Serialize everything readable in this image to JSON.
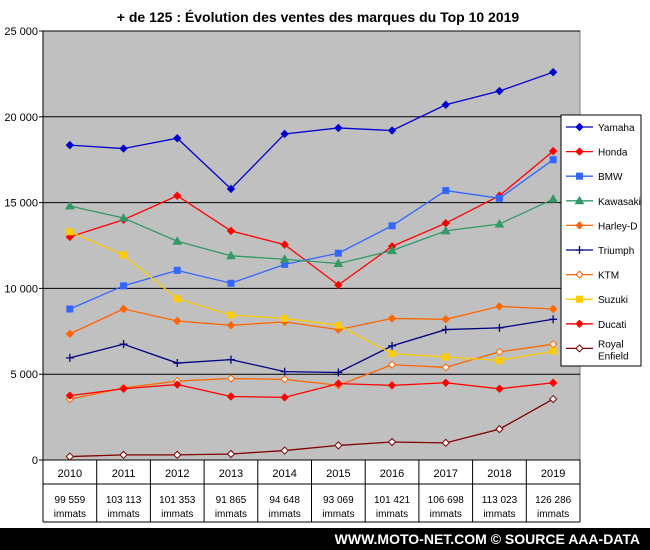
{
  "chart_data": {
    "type": "line",
    "title": "+ de 125 : Évolution des ventes des marques du Top 10 2019",
    "x": [
      "2010",
      "2011",
      "2012",
      "2013",
      "2014",
      "2015",
      "2016",
      "2017",
      "2018",
      "2019"
    ],
    "totals": [
      "99 559",
      "103 113",
      "101 353",
      "91 865",
      "94 648",
      "93 069",
      "101 421",
      "106 698",
      "113 023",
      "126 286"
    ],
    "totals_unit": "immats",
    "ylim": [
      0,
      25000
    ],
    "yticks": [
      0,
      5000,
      10000,
      15000,
      20000,
      25000
    ],
    "ytick_labels": [
      "0",
      "5 000",
      "10 000",
      "15 000",
      "20 000",
      "25 000"
    ],
    "grid": true,
    "legend_position": "right",
    "series": [
      {
        "name": "Yamaha",
        "color": "#0000cc",
        "marker": "diamond-filled",
        "values": [
          18350,
          18150,
          18750,
          15800,
          19000,
          19350,
          19200,
          20700,
          21500,
          22600
        ]
      },
      {
        "name": "Honda",
        "color": "#ff0000",
        "marker": "diamond-filled",
        "values": [
          13000,
          14000,
          15400,
          13350,
          12550,
          10200,
          12450,
          13800,
          15400,
          18000
        ]
      },
      {
        "name": "BMW",
        "color": "#3366ff",
        "marker": "square-filled",
        "values": [
          8800,
          10150,
          11050,
          10300,
          11400,
          12050,
          13650,
          15700,
          15250,
          17500
        ]
      },
      {
        "name": "Kawasaki",
        "color": "#339966",
        "marker": "triangle-filled",
        "values": [
          14800,
          14100,
          12750,
          11900,
          11700,
          11450,
          12200,
          13350,
          13750,
          15200
        ]
      },
      {
        "name": "Harley-D",
        "color": "#ff6600",
        "marker": "diamond-filled",
        "values": [
          7350,
          8800,
          8100,
          7850,
          8050,
          7600,
          8250,
          8200,
          8950,
          8800
        ]
      },
      {
        "name": "Triumph",
        "color": "#000080",
        "marker": "plus",
        "values": [
          5950,
          6750,
          5650,
          5850,
          5150,
          5100,
          6650,
          7600,
          7700,
          8200
        ]
      },
      {
        "name": "KTM",
        "color": "#ff6600",
        "marker": "diamond-open",
        "values": [
          3550,
          4200,
          4600,
          4750,
          4700,
          4350,
          5550,
          5400,
          6300,
          6750
        ]
      },
      {
        "name": "Suzuki",
        "color": "#ffcc00",
        "marker": "square-filled",
        "values": [
          13300,
          11950,
          9400,
          8450,
          8250,
          7850,
          6200,
          6000,
          5800,
          6350
        ]
      },
      {
        "name": "Ducati",
        "color": "#ff0000",
        "marker": "diamond-filled",
        "values": [
          3750,
          4150,
          4400,
          3700,
          3650,
          4450,
          4350,
          4500,
          4150,
          4500
        ]
      },
      {
        "name": "Royal Enfield",
        "legend_lines": [
          "Royal",
          "Enfield"
        ],
        "color": "#800000",
        "marker": "diamond-open",
        "values": [
          200,
          300,
          300,
          350,
          550,
          850,
          1050,
          1000,
          1800,
          3550
        ]
      }
    ]
  },
  "footer": {
    "text": "WWW.MOTO-NET.COM  © SOURCE AAA-DATA"
  }
}
